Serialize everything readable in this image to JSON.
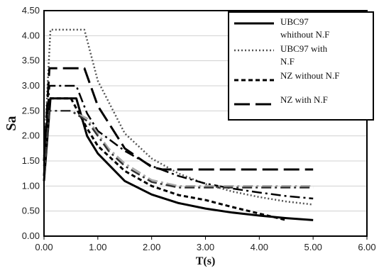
{
  "chart_data": {
    "type": "line",
    "xlabel": "T(s)",
    "ylabel": "Sa",
    "xlim": [
      0,
      6
    ],
    "ylim": [
      0,
      4.5
    ],
    "x_ticks": [
      "0.00",
      "1.00",
      "2.00",
      "3.00",
      "4.00",
      "5.00",
      "6.00"
    ],
    "y_ticks": [
      "0.00",
      "0.50",
      "1.00",
      "1.50",
      "2.00",
      "2.50",
      "3.00",
      "3.50",
      "4.00",
      "4.50"
    ],
    "grid": "horizontal",
    "legend_position": "top-right",
    "series": [
      {
        "name": "UBC97 whithout N.F",
        "legend_lines": [
          "UBC97",
          "whithout N.F"
        ],
        "style": "solid",
        "color": "#000000",
        "x": [
          0,
          0.12,
          0.6,
          0.8,
          1.0,
          1.5,
          2.0,
          2.5,
          3.0,
          3.5,
          4.0,
          4.5,
          5.0
        ],
        "y": [
          1.1,
          2.75,
          2.75,
          2.0,
          1.65,
          1.1,
          0.83,
          0.66,
          0.55,
          0.47,
          0.41,
          0.36,
          0.32
        ]
      },
      {
        "name": "UBC97 with N.F",
        "legend_lines": [
          "UBC97 with",
          "N.F"
        ],
        "style": "dotted",
        "color": "#555555",
        "x": [
          0,
          0.12,
          0.75,
          1.0,
          1.5,
          2.0,
          2.5,
          3.0,
          3.5,
          4.0,
          4.5,
          5.0
        ],
        "y": [
          1.6,
          4.12,
          4.12,
          3.1,
          2.05,
          1.55,
          1.25,
          1.04,
          0.89,
          0.78,
          0.69,
          0.63
        ]
      },
      {
        "name": "NZ without N.F",
        "legend_lines": [
          "NZ without N.F"
        ],
        "style": "short-dash",
        "color": "#000000",
        "x": [
          0,
          0.1,
          0.5,
          0.8,
          1.0,
          1.5,
          2.0,
          2.5,
          3.0,
          3.5,
          4.0,
          4.5
        ],
        "y": [
          1.2,
          2.75,
          2.75,
          2.15,
          1.8,
          1.3,
          1.0,
          0.82,
          0.72,
          0.58,
          0.45,
          0.32
        ]
      },
      {
        "name": "NZ with N.F",
        "legend_lines": [
          "NZ with N.F"
        ],
        "style": "long-dash",
        "color": "#000000",
        "x": [
          0,
          0.1,
          0.75,
          1.0,
          1.5,
          2.0,
          2.2,
          3.0,
          4.0,
          5.0
        ],
        "y": [
          1.5,
          3.35,
          3.35,
          2.6,
          1.75,
          1.38,
          1.33,
          1.33,
          1.33,
          1.33
        ]
      },
      {
        "name": "",
        "style": "dash-dot",
        "color": "#000000",
        "x": [
          0,
          0.1,
          0.6,
          0.8,
          1.0,
          1.5,
          2.0,
          2.5,
          3.0,
          3.5,
          4.0,
          4.5,
          5.0
        ],
        "y": [
          1.4,
          3.0,
          3.0,
          2.45,
          2.1,
          1.7,
          1.4,
          1.2,
          1.05,
          0.95,
          0.87,
          0.8,
          0.75
        ]
      },
      {
        "name": "",
        "style": "dash-dot",
        "color": "#aaaaaa",
        "x": [
          0,
          0.1,
          0.5,
          0.8,
          1.0,
          1.2,
          1.5,
          2.0,
          2.5,
          3.0,
          3.5,
          4.0,
          4.5,
          5.0
        ],
        "y": [
          1.2,
          2.5,
          2.5,
          2.35,
          2.05,
          1.75,
          1.45,
          1.12,
          1.0,
          1.0,
          1.0,
          1.0,
          1.0,
          1.0
        ]
      },
      {
        "name": "",
        "style": "dash-dot",
        "color": "#333333",
        "x": [
          0,
          0.1,
          0.5,
          0.8,
          1.0,
          1.2,
          1.5,
          2.0,
          2.5,
          3.0,
          3.5,
          4.0,
          4.5,
          5.0
        ],
        "y": [
          1.2,
          2.5,
          2.5,
          2.3,
          2.0,
          1.7,
          1.4,
          1.08,
          0.97,
          0.97,
          0.97,
          0.97,
          0.97,
          0.97
        ]
      }
    ]
  }
}
